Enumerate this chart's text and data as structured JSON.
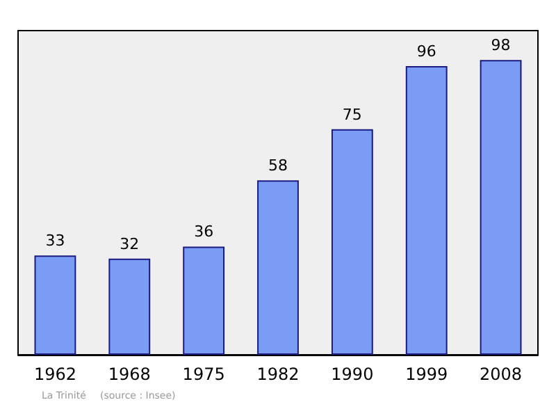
{
  "chart_data": {
    "type": "bar",
    "categories": [
      "1962",
      "1968",
      "1975",
      "1982",
      "1990",
      "1999",
      "2008"
    ],
    "values": [
      33,
      32,
      36,
      58,
      75,
      96,
      98
    ],
    "color": "#7b9cf5",
    "data_labels": true,
    "annotations": [
      "La Trinité",
      "(source : Insee)"
    ]
  }
}
